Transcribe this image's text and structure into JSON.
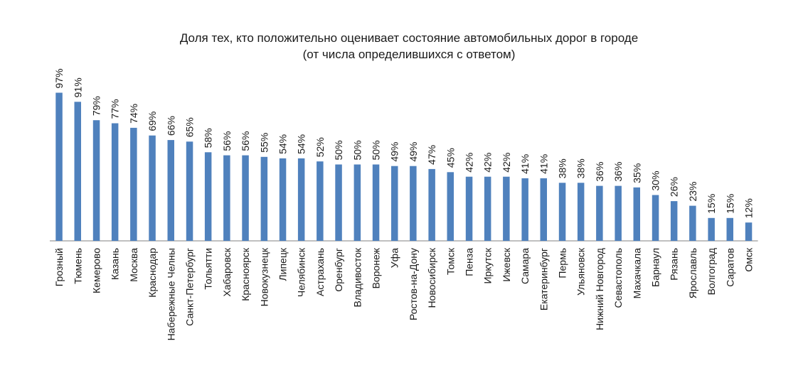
{
  "chart_data": {
    "type": "bar",
    "title": "Доля тех, кто положительно оценивает состояние автомобильных дорог в городе",
    "subtitle": "(от числа определившихся с ответом)",
    "xlabel": "",
    "ylabel": "",
    "ylim": [
      0,
      100
    ],
    "grid": false,
    "bar_color": "#4f81bd",
    "axis_color": "#808080",
    "value_suffix": "%",
    "categories": [
      "Грозный",
      "Тюмень",
      "Кемерово",
      "Казань",
      "Москва",
      "Краснодар",
      "Набережные Челны",
      "Санкт-Петербург",
      "Тольятти",
      "Хабаровск",
      "Красноярск",
      "Новокузнецк",
      "Липецк",
      "Челябинск",
      "Астрахань",
      "Оренбург",
      "Владивосток",
      "Воронеж",
      "Уфа",
      "Ростов-на-Дону",
      "Новосибирск",
      "Томск",
      "Пенза",
      "Иркутск",
      "Ижевск",
      "Самара",
      "Екатеринбург",
      "Пермь",
      "Ульяновск",
      "Нижний Новгород",
      "Севастополь",
      "Махачкала",
      "Барнаул",
      "Рязань",
      "Ярославль",
      "Волгоград",
      "Саратов",
      "Омск"
    ],
    "values": [
      97,
      91,
      79,
      77,
      74,
      69,
      66,
      65,
      58,
      56,
      56,
      55,
      54,
      54,
      52,
      50,
      50,
      50,
      49,
      49,
      47,
      45,
      42,
      42,
      42,
      41,
      41,
      38,
      38,
      36,
      36,
      35,
      30,
      26,
      23,
      15,
      15,
      12
    ]
  }
}
